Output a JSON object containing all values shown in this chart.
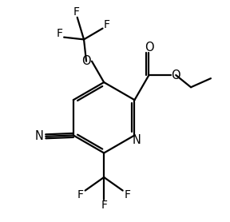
{
  "background_color": "#ffffff",
  "line_color": "#000000",
  "line_width": 1.6,
  "fig_width": 2.88,
  "fig_height": 2.78,
  "dpi": 100,
  "xlim": [
    0,
    10
  ],
  "ylim": [
    0,
    10
  ]
}
